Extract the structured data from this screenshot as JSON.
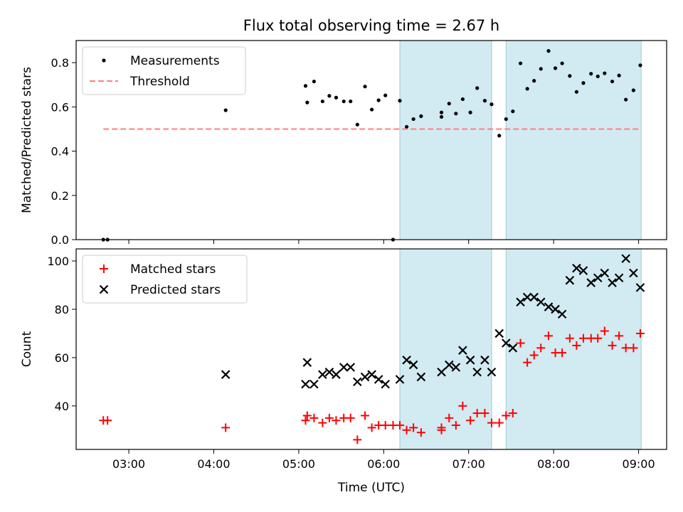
{
  "chart_data": {
    "type": "scatter",
    "title": "Flux total observing time = 2.67 h",
    "xlabel": "Time (UTC)",
    "x_tick_labels": [
      "03:00",
      "04:00",
      "05:00",
      "06:00",
      "07:00",
      "08:00",
      "09:00"
    ],
    "x_tick_hours": [
      3,
      4,
      5,
      6,
      7,
      8,
      9
    ],
    "xlim_hours": [
      2.38,
      9.33
    ],
    "shaded_intervals_hours": [
      [
        6.19,
        7.27
      ],
      [
        7.44,
        9.03
      ]
    ],
    "shade_color": "#add8e6",
    "panels": [
      {
        "ylabel": "Matched/Predicted stars",
        "ylim": [
          0,
          0.9
        ],
        "yticks": [
          0.0,
          0.2,
          0.4,
          0.6,
          0.8
        ],
        "ytick_labels": [
          "0.0",
          "0.2",
          "0.4",
          "0.6",
          "0.8"
        ],
        "legend_position": "top-left",
        "series": [
          {
            "name": "Measurements",
            "marker": "dot",
            "color": "#000000",
            "points": [
              [
                2.7,
                0.0
              ],
              [
                2.75,
                0.0
              ],
              [
                4.14,
                0.585
              ],
              [
                5.08,
                0.695
              ],
              [
                5.1,
                0.62
              ],
              [
                5.18,
                0.715
              ],
              [
                5.28,
                0.625
              ],
              [
                5.36,
                0.65
              ],
              [
                5.44,
                0.642
              ],
              [
                5.53,
                0.625
              ],
              [
                5.61,
                0.625
              ],
              [
                5.69,
                0.52
              ],
              [
                5.78,
                0.692
              ],
              [
                5.86,
                0.588
              ],
              [
                5.94,
                0.63
              ],
              [
                6.02,
                0.652
              ],
              [
                6.11,
                0.0
              ],
              [
                6.19,
                0.628
              ],
              [
                6.27,
                0.51
              ],
              [
                6.35,
                0.545
              ],
              [
                6.44,
                0.558
              ],
              [
                6.68,
                0.575
              ],
              [
                6.68,
                0.555
              ],
              [
                6.77,
                0.615
              ],
              [
                6.85,
                0.57
              ],
              [
                6.93,
                0.635
              ],
              [
                7.02,
                0.575
              ],
              [
                7.1,
                0.685
              ],
              [
                7.19,
                0.628
              ],
              [
                7.27,
                0.612
              ],
              [
                7.36,
                0.47
              ],
              [
                7.44,
                0.545
              ],
              [
                7.52,
                0.58
              ],
              [
                7.61,
                0.797
              ],
              [
                7.69,
                0.682
              ],
              [
                7.77,
                0.718
              ],
              [
                7.85,
                0.772
              ],
              [
                7.94,
                0.853
              ],
              [
                8.02,
                0.775
              ],
              [
                8.1,
                0.797
              ],
              [
                8.19,
                0.74
              ],
              [
                8.27,
                0.668
              ],
              [
                8.35,
                0.708
              ],
              [
                8.44,
                0.75
              ],
              [
                8.52,
                0.738
              ],
              [
                8.6,
                0.752
              ],
              [
                8.69,
                0.715
              ],
              [
                8.77,
                0.742
              ],
              [
                8.85,
                0.633
              ],
              [
                8.94,
                0.675
              ],
              [
                9.02,
                0.788
              ]
            ]
          },
          {
            "name": "Threshold",
            "marker": "dashed-line",
            "color": "#ff7f7f",
            "x_range": [
              2.7,
              9.02
            ],
            "y": 0.5
          }
        ]
      },
      {
        "ylabel": "Count",
        "ylim": [
          22,
          105
        ],
        "yticks": [
          40,
          60,
          80,
          100
        ],
        "ytick_labels": [
          "40",
          "60",
          "80",
          "100"
        ],
        "legend_position": "top-left",
        "series": [
          {
            "name": "Matched stars",
            "marker": "plus",
            "color": "#ff0000",
            "points": [
              [
                2.7,
                34
              ],
              [
                2.75,
                34
              ],
              [
                4.14,
                31
              ],
              [
                5.08,
                34
              ],
              [
                5.1,
                36
              ],
              [
                5.18,
                35
              ],
              [
                5.28,
                33
              ],
              [
                5.36,
                35
              ],
              [
                5.44,
                34
              ],
              [
                5.53,
                35
              ],
              [
                5.61,
                35
              ],
              [
                5.69,
                26
              ],
              [
                5.78,
                36
              ],
              [
                5.86,
                31
              ],
              [
                5.94,
                32
              ],
              [
                6.02,
                32
              ],
              [
                6.11,
                32
              ],
              [
                6.19,
                32
              ],
              [
                6.27,
                30
              ],
              [
                6.35,
                31
              ],
              [
                6.44,
                29
              ],
              [
                6.68,
                30
              ],
              [
                6.68,
                31
              ],
              [
                6.77,
                35
              ],
              [
                6.85,
                32
              ],
              [
                6.93,
                40
              ],
              [
                7.02,
                34
              ],
              [
                7.1,
                37
              ],
              [
                7.19,
                37
              ],
              [
                7.27,
                33
              ],
              [
                7.36,
                33
              ],
              [
                7.44,
                36
              ],
              [
                7.52,
                37
              ],
              [
                7.61,
                66
              ],
              [
                7.69,
                58
              ],
              [
                7.77,
                61
              ],
              [
                7.85,
                64
              ],
              [
                7.94,
                69
              ],
              [
                8.02,
                62
              ],
              [
                8.1,
                62
              ],
              [
                8.19,
                68
              ],
              [
                8.27,
                65
              ],
              [
                8.35,
                68
              ],
              [
                8.44,
                68
              ],
              [
                8.52,
                68
              ],
              [
                8.6,
                71
              ],
              [
                8.69,
                65
              ],
              [
                8.77,
                69
              ],
              [
                8.85,
                64
              ],
              [
                8.94,
                64
              ],
              [
                9.02,
                70
              ]
            ]
          },
          {
            "name": "Predicted stars",
            "marker": "x",
            "color": "#000000",
            "points": [
              [
                4.14,
                53
              ],
              [
                5.08,
                49
              ],
              [
                5.1,
                58
              ],
              [
                5.18,
                49
              ],
              [
                5.28,
                53
              ],
              [
                5.36,
                54
              ],
              [
                5.44,
                53
              ],
              [
                5.53,
                56
              ],
              [
                5.61,
                56
              ],
              [
                5.69,
                50
              ],
              [
                5.78,
                52
              ],
              [
                5.86,
                53
              ],
              [
                5.94,
                51
              ],
              [
                6.02,
                49
              ],
              [
                6.19,
                51
              ],
              [
                6.27,
                59
              ],
              [
                6.35,
                57
              ],
              [
                6.44,
                52
              ],
              [
                6.68,
                54
              ],
              [
                6.77,
                57
              ],
              [
                6.85,
                56
              ],
              [
                6.93,
                63
              ],
              [
                7.02,
                59
              ],
              [
                7.1,
                54
              ],
              [
                7.19,
                59
              ],
              [
                7.27,
                54
              ],
              [
                7.36,
                70
              ],
              [
                7.44,
                66
              ],
              [
                7.52,
                64
              ],
              [
                7.61,
                83
              ],
              [
                7.69,
                85
              ],
              [
                7.77,
                85
              ],
              [
                7.85,
                83
              ],
              [
                7.94,
                81
              ],
              [
                8.02,
                80
              ],
              [
                8.1,
                78
              ],
              [
                8.19,
                92
              ],
              [
                8.27,
                97
              ],
              [
                8.35,
                96
              ],
              [
                8.44,
                91
              ],
              [
                8.52,
                93
              ],
              [
                8.6,
                95
              ],
              [
                8.69,
                91
              ],
              [
                8.77,
                93
              ],
              [
                8.85,
                101
              ],
              [
                8.94,
                95
              ],
              [
                9.02,
                89
              ]
            ]
          }
        ]
      }
    ]
  }
}
